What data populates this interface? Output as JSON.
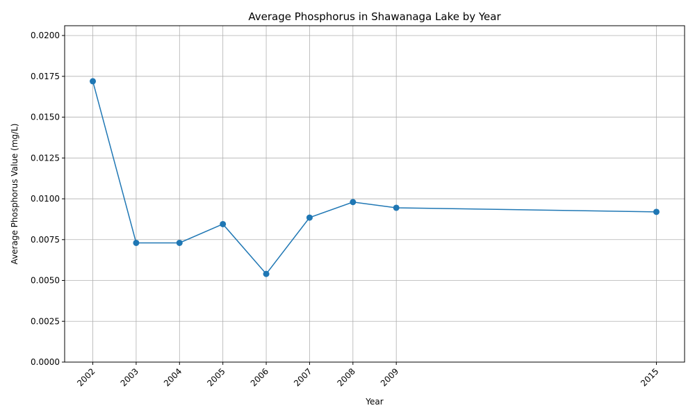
{
  "chart_data": {
    "type": "line",
    "title": "Average Phosphorus in Shawanaga Lake by Year",
    "xlabel": "Year",
    "ylabel": "Average Phosphorus Value (mg/L)",
    "x": [
      2002,
      2003,
      2004,
      2005,
      2006,
      2007,
      2008,
      2009,
      2015
    ],
    "x_tick_labels": [
      "2002",
      "2003",
      "2004",
      "2005",
      "2006",
      "2007",
      "2008",
      "2009",
      "2015"
    ],
    "series": [
      {
        "values": [
          0.0172,
          0.0073,
          0.0073,
          0.00845,
          0.0054,
          0.00885,
          0.0098,
          0.00945,
          0.0092
        ],
        "color": "#1f77b4",
        "marker": "circle"
      }
    ],
    "xlim": [
      2001.35,
      2015.65
    ],
    "ylim": [
      0,
      0.0206
    ],
    "y_ticks": [
      0,
      0.0025,
      0.005,
      0.0075,
      0.01,
      0.0125,
      0.015,
      0.0175,
      0.02
    ],
    "y_tick_labels": [
      "0.0000",
      "0.0025",
      "0.0050",
      "0.0075",
      "0.0100",
      "0.0125",
      "0.0150",
      "0.0175",
      "0.0200"
    ],
    "grid": true,
    "x_tick_rotation": 45
  }
}
